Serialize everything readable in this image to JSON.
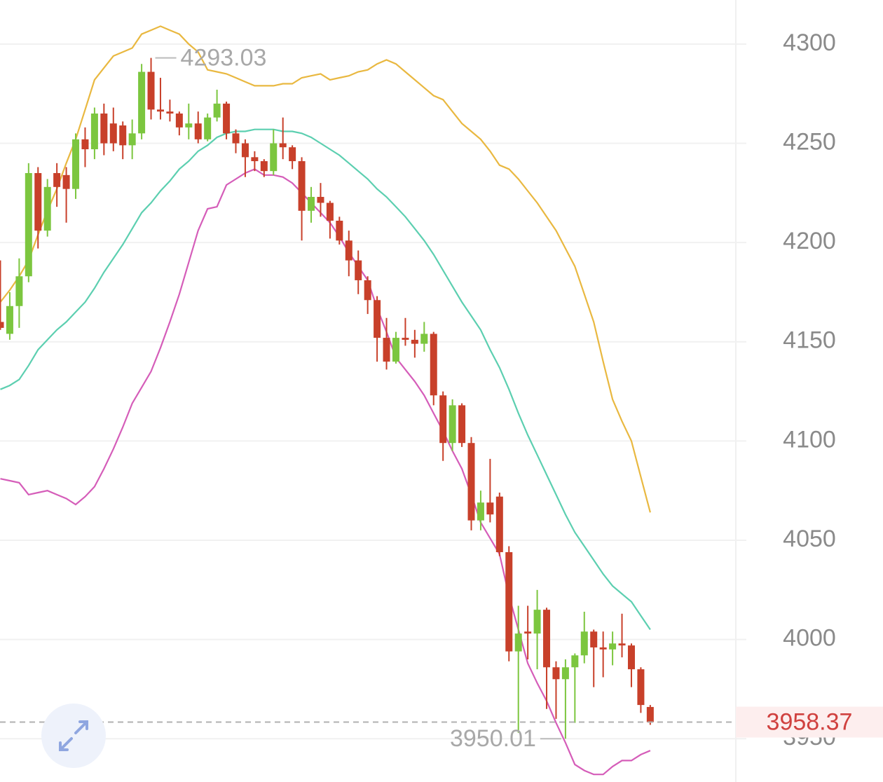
{
  "chart_data": {
    "type": "candlestick",
    "ylim": [
      3928.2,
      4322.2
    ],
    "yticks": [
      3950,
      4000,
      4050,
      4100,
      4150,
      4200,
      4250,
      4300
    ],
    "grid": true,
    "up_color": "#7cc63f",
    "down_color": "#c8402a",
    "open": [
      4160,
      4154,
      4168,
      4183,
      4235,
      4206,
      4235,
      4234,
      4227,
      4252,
      4247,
      4265,
      4260,
      4259,
      4249,
      4255,
      4286,
      4267,
      4266,
      4265,
      4258,
      4260,
      4252,
      4263,
      4270,
      4255,
      4250,
      4243,
      4241,
      4236,
      4250,
      4248,
      4241,
      4216,
      4223,
      4220,
      4211,
      4201,
      4191,
      4181,
      4171,
      4152,
      4140,
      4152,
      4151,
      4149,
      4154,
      4123,
      4099,
      4118,
      4099,
      4060,
      4069,
      4072,
      4044,
      3994,
      4004,
      4003,
      4015,
      3986,
      3980,
      3986,
      3992,
      4004,
      3996,
      3995,
      3998,
      3997,
      3985,
      3966
    ],
    "high": [
      4191,
      4175,
      4192,
      4240,
      4238,
      4232,
      4240,
      4238,
      4255,
      4258,
      4268,
      4270,
      4268,
      4261,
      4262,
      4290,
      4293.03,
      4283,
      4272,
      4266,
      4270,
      4266,
      4265,
      4277,
      4271,
      4257,
      4252,
      4246,
      4242,
      4257,
      4263,
      4249,
      4243,
      4228,
      4230,
      4221,
      4213,
      4206,
      4196,
      4183,
      4173,
      4162,
      4155,
      4162,
      4156,
      4160,
      4155,
      4125,
      4121,
      4119,
      4102,
      4075,
      4091,
      4074,
      4047,
      4017,
      4017,
      4025,
      4016,
      3989,
      3990,
      3993,
      4014,
      4005,
      4004,
      4004,
      4013,
      3998,
      3986,
      3967
    ],
    "low": [
      4156,
      4151,
      4157,
      4180,
      4197,
      4203,
      4218,
      4210,
      4222,
      4238,
      4242,
      4244,
      4246,
      4242,
      4242,
      4252,
      4262,
      4262,
      4261,
      4254,
      4252,
      4250,
      4251,
      4261,
      4252,
      4245,
      4233,
      4236,
      4233,
      4234,
      4242,
      4237,
      4201,
      4210,
      4213,
      4202,
      4199,
      4183,
      4174,
      4164,
      4140,
      4136,
      4139,
      4148,
      4142,
      4145,
      4118,
      4090,
      4095,
      4097,
      4055,
      4055,
      4059,
      4042,
      3989,
      3953,
      3990,
      3985,
      3965,
      3960,
      3950.01,
      3958,
      3988,
      3976,
      3981,
      3987,
      3991,
      3976,
      3963,
      3957
    ],
    "close": [
      4157,
      4168,
      4183,
      4235,
      4206,
      4228,
      4228,
      4227,
      4252,
      4247,
      4265,
      4250,
      4250,
      4249,
      4255,
      4286,
      4267,
      4266,
      4265,
      4258,
      4260,
      4252,
      4263,
      4270,
      4255,
      4250,
      4243,
      4241,
      4236,
      4250,
      4248,
      4241,
      4216,
      4223,
      4220,
      4211,
      4201,
      4191,
      4181,
      4171,
      4152,
      4140,
      4152,
      4151,
      4149,
      4154,
      4123,
      4099,
      4118,
      4099,
      4060,
      4069,
      4063,
      4044,
      3994,
      4003,
      4003,
      4015,
      3986,
      3980,
      3986,
      3992,
      4004,
      3996,
      3995,
      3998,
      3997,
      3985,
      3967,
      3958.37
    ],
    "overlays": [
      {
        "color": "#e9b840",
        "values": [
          4170,
          4176,
          4183,
          4191,
          4204,
          4216,
          4227,
          4240,
          4252,
          4267,
          4282,
          4288,
          4294,
          4296,
          4298,
          4305,
          4307,
          4309,
          4307,
          4305,
          4300,
          4296,
          4287,
          4286,
          4285,
          4283,
          4281,
          4279,
          4279,
          4279,
          4280,
          4280,
          4283,
          4284,
          4285,
          4282,
          4283,
          4284,
          4286,
          4287,
          4290,
          4292,
          4290,
          4286,
          4282,
          4278,
          4274,
          4272,
          4266,
          4260,
          4256,
          4252,
          4246,
          4239,
          4237,
          4232,
          4226,
          4220,
          4213,
          4206,
          4197,
          4188,
          4174,
          4160,
          4140,
          4121,
          4110,
          4100,
          4082,
          4064
        ]
      },
      {
        "color": "#5ccfb0",
        "values": [
          4126,
          4128,
          4131,
          4138,
          4146,
          4151,
          4156,
          4160,
          4165,
          4170,
          4177,
          4185,
          4192,
          4199,
          4207,
          4215,
          4220,
          4226,
          4231,
          4237,
          4241,
          4246,
          4249,
          4253,
          4255,
          4256,
          4256,
          4257,
          4257,
          4257,
          4256,
          4256,
          4255,
          4253,
          4250,
          4247,
          4244,
          4240,
          4236,
          4232,
          4227,
          4223,
          4218,
          4213,
          4207,
          4201,
          4194,
          4186,
          4178,
          4170,
          4163,
          4156,
          4146,
          4137,
          4126,
          4114,
          4103,
          4093,
          4083,
          4073,
          4063,
          4054,
          4047,
          4040,
          4033,
          4027,
          4023,
          4019,
          4012,
          4005
        ]
      },
      {
        "color": "#d55db9",
        "values": [
          4081,
          4080,
          4079,
          4073,
          4074,
          4075,
          4073,
          4071,
          4068,
          4072,
          4077,
          4086,
          4096,
          4107,
          4119,
          4127,
          4135,
          4147,
          4160,
          4174,
          4190,
          4206,
          4217,
          4218,
          4229,
          4232,
          4235,
          4237,
          4234,
          4234,
          4233,
          4230,
          4225,
          4220,
          4215,
          4210,
          4203,
          4195,
          4188,
          4181,
          4167,
          4155,
          4142,
          4136,
          4130,
          4123,
          4114,
          4105,
          4095,
          4086,
          4073,
          4059,
          4051,
          4043,
          4022,
          4005,
          3988,
          3978,
          3969,
          3958,
          3948,
          3937,
          3934,
          3932,
          3932,
          3936,
          3939,
          3939,
          3942,
          3944
        ]
      }
    ]
  }
}
